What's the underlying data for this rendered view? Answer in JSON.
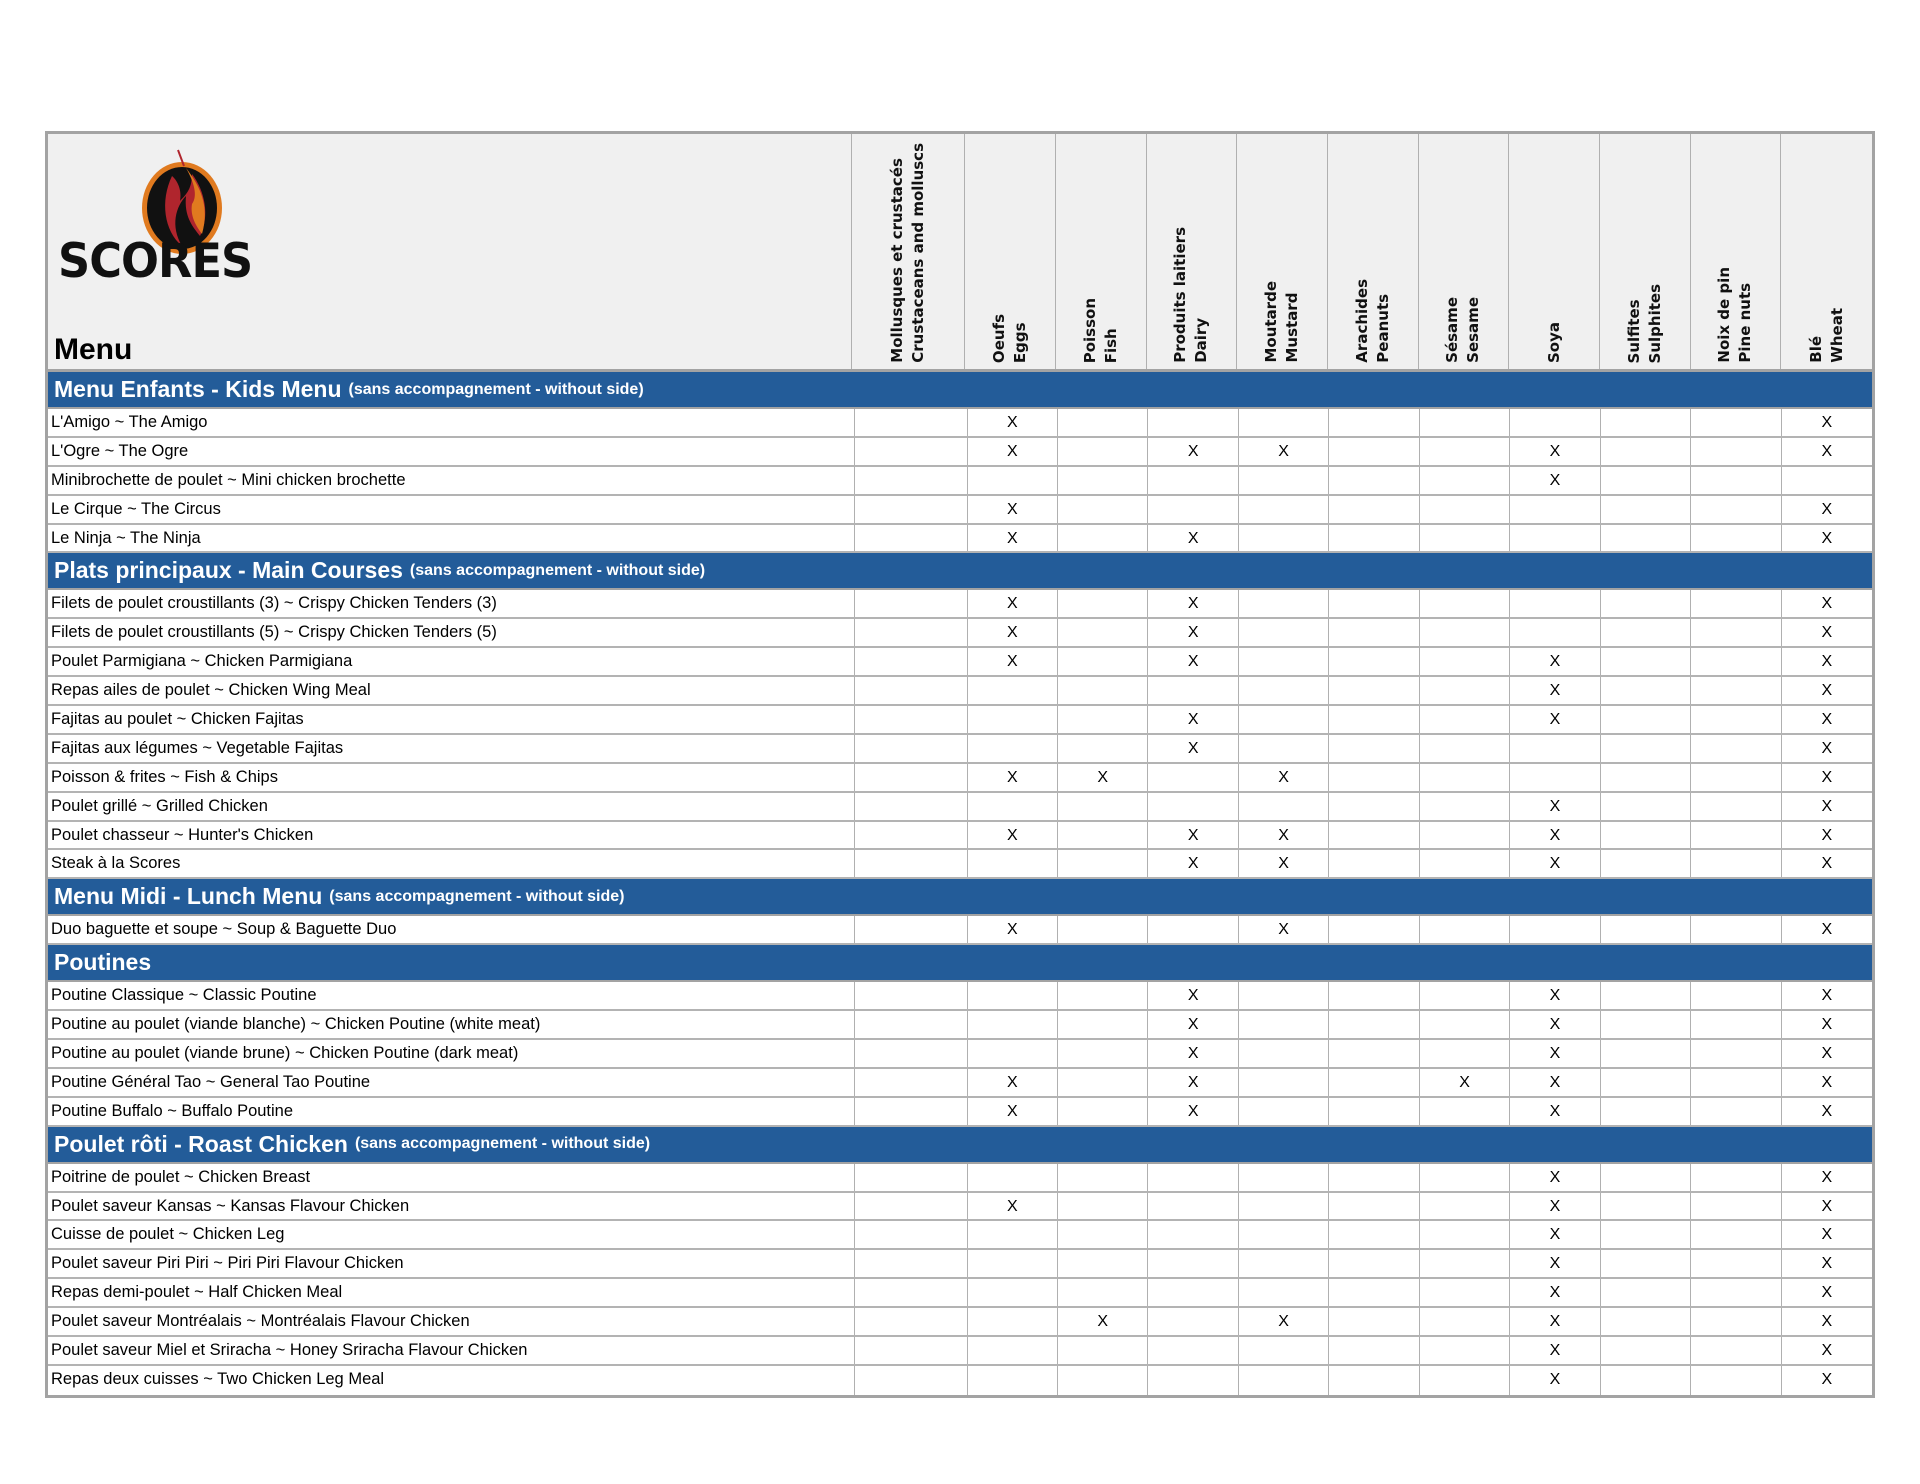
{
  "logo": {
    "text": "SCORES",
    "colors": {
      "orange": "#e07a1f",
      "red": "#b0252d",
      "black": "#111111"
    }
  },
  "header": {
    "title": "Menu"
  },
  "allergens": [
    {
      "fr": "Mollusques et crustacés",
      "en": "Crustaceans and molluscs"
    },
    {
      "fr": "Oeufs",
      "en": "Eggs"
    },
    {
      "fr": "Poisson",
      "en": "Fish"
    },
    {
      "fr": "Produits laitiers",
      "en": "Dairy"
    },
    {
      "fr": "Moutarde",
      "en": "Mustard"
    },
    {
      "fr": "Arachides",
      "en": "Peanuts"
    },
    {
      "fr": "Sésame",
      "en": "Sesame"
    },
    {
      "fr": "Soya",
      "en": ""
    },
    {
      "fr": "Sulfites",
      "en": "Sulphites"
    },
    {
      "fr": "Noix de pin",
      "en": "Pine nuts"
    },
    {
      "fr": "Blé",
      "en": "Wheat"
    }
  ],
  "colors": {
    "section_bg": "#235c99",
    "header_bg": "#f0f0f0"
  },
  "sections": [
    {
      "title": "Menu Enfants - Kids Menu",
      "note": "(sans accompagnement - without side)",
      "rows": [
        {
          "name": "L'Amigo ~ The Amigo",
          "cells": [
            "",
            "X",
            "",
            "",
            "",
            "",
            "",
            "",
            "",
            "",
            "X"
          ]
        },
        {
          "name": "L'Ogre ~ The Ogre",
          "cells": [
            "",
            "X",
            "",
            "X",
            "X",
            "",
            "",
            "X",
            "",
            "",
            "X"
          ]
        },
        {
          "name": "Minibrochette de poulet ~ Mini chicken brochette",
          "cells": [
            "",
            "",
            "",
            "",
            "",
            "",
            "",
            "X",
            "",
            "",
            ""
          ]
        },
        {
          "name": "Le Cirque ~ The Circus",
          "cells": [
            "",
            "X",
            "",
            "",
            "",
            "",
            "",
            "",
            "",
            "",
            "X"
          ]
        },
        {
          "name": "Le Ninja ~ The Ninja",
          "cells": [
            "",
            "X",
            "",
            "X",
            "",
            "",
            "",
            "",
            "",
            "",
            "X"
          ]
        }
      ]
    },
    {
      "title": "Plats principaux - Main Courses",
      "note": "(sans accompagnement - without side)",
      "rows": [
        {
          "name": "Filets de poulet croustillants (3) ~ Crispy Chicken Tenders (3)",
          "cells": [
            "",
            "X",
            "",
            "X",
            "",
            "",
            "",
            "",
            "",
            "",
            "X"
          ]
        },
        {
          "name": "Filets de poulet croustillants (5) ~ Crispy Chicken Tenders (5)",
          "cells": [
            "",
            "X",
            "",
            "X",
            "",
            "",
            "",
            "",
            "",
            "",
            "X"
          ]
        },
        {
          "name": "Poulet Parmigiana ~ Chicken Parmigiana",
          "cells": [
            "",
            "X",
            "",
            "X",
            "",
            "",
            "",
            "X",
            "",
            "",
            "X"
          ]
        },
        {
          "name": "Repas ailes de poulet ~ Chicken Wing Meal",
          "cells": [
            "",
            "",
            "",
            "",
            "",
            "",
            "",
            "X",
            "",
            "",
            "X"
          ]
        },
        {
          "name": "Fajitas au poulet ~ Chicken Fajitas",
          "cells": [
            "",
            "",
            "",
            "X",
            "",
            "",
            "",
            "X",
            "",
            "",
            "X"
          ]
        },
        {
          "name": "Fajitas aux légumes ~ Vegetable Fajitas",
          "cells": [
            "",
            "",
            "",
            "X",
            "",
            "",
            "",
            "",
            "",
            "",
            "X"
          ]
        },
        {
          "name": "Poisson & frites ~ Fish & Chips",
          "cells": [
            "",
            "X",
            "X",
            "",
            "X",
            "",
            "",
            "",
            "",
            "",
            "X"
          ]
        },
        {
          "name": "Poulet grillé ~ Grilled Chicken",
          "cells": [
            "",
            "",
            "",
            "",
            "",
            "",
            "",
            "X",
            "",
            "",
            "X"
          ]
        },
        {
          "name": "Poulet chasseur ~ Hunter's Chicken",
          "cells": [
            "",
            "X",
            "",
            "X",
            "X",
            "",
            "",
            "X",
            "",
            "",
            "X"
          ]
        },
        {
          "name": "Steak à la Scores",
          "cells": [
            "",
            "",
            "",
            "X",
            "X",
            "",
            "",
            "X",
            "",
            "",
            "X"
          ]
        }
      ]
    },
    {
      "title": "Menu Midi - Lunch Menu",
      "note": "(sans accompagnement - without side)",
      "rows": [
        {
          "name": "Duo baguette et soupe ~ Soup & Baguette Duo",
          "cells": [
            "",
            "X",
            "",
            "",
            "X",
            "",
            "",
            "",
            "",
            "",
            "X"
          ]
        }
      ]
    },
    {
      "title": "Poutines",
      "note": "",
      "rows": [
        {
          "name": "Poutine Classique ~ Classic Poutine",
          "cells": [
            "",
            "",
            "",
            "X",
            "",
            "",
            "",
            "X",
            "",
            "",
            "X"
          ]
        },
        {
          "name": "Poutine au poulet (viande blanche) ~ Chicken Poutine (white meat)",
          "cells": [
            "",
            "",
            "",
            "X",
            "",
            "",
            "",
            "X",
            "",
            "",
            "X"
          ]
        },
        {
          "name": "Poutine au poulet (viande brune) ~ Chicken Poutine (dark meat)",
          "cells": [
            "",
            "",
            "",
            "X",
            "",
            "",
            "",
            "X",
            "",
            "",
            "X"
          ]
        },
        {
          "name": "Poutine Général Tao ~ General Tao Poutine",
          "cells": [
            "",
            "X",
            "",
            "X",
            "",
            "",
            "X",
            "X",
            "",
            "",
            "X"
          ]
        },
        {
          "name": "Poutine Buffalo ~ Buffalo Poutine",
          "cells": [
            "",
            "X",
            "",
            "X",
            "",
            "",
            "",
            "X",
            "",
            "",
            "X"
          ]
        }
      ]
    },
    {
      "title": "Poulet rôti - Roast Chicken",
      "note": "(sans accompagnement - without side)",
      "rows": [
        {
          "name": "Poitrine de poulet ~ Chicken Breast",
          "cells": [
            "",
            "",
            "",
            "",
            "",
            "",
            "",
            "X",
            "",
            "",
            "X"
          ]
        },
        {
          "name": "Poulet saveur Kansas ~ Kansas Flavour Chicken",
          "cells": [
            "",
            "X",
            "",
            "",
            "",
            "",
            "",
            "X",
            "",
            "",
            "X"
          ]
        },
        {
          "name": "Cuisse de poulet ~ Chicken Leg",
          "cells": [
            "",
            "",
            "",
            "",
            "",
            "",
            "",
            "X",
            "",
            "",
            "X"
          ]
        },
        {
          "name": "Poulet saveur Piri Piri ~ Piri Piri Flavour Chicken",
          "cells": [
            "",
            "",
            "",
            "",
            "",
            "",
            "",
            "X",
            "",
            "",
            "X"
          ]
        },
        {
          "name": "Repas demi-poulet ~ Half Chicken Meal",
          "cells": [
            "",
            "",
            "",
            "",
            "",
            "",
            "",
            "X",
            "",
            "",
            "X"
          ]
        },
        {
          "name": "Poulet saveur Montréalais ~ Montréalais Flavour Chicken",
          "cells": [
            "",
            "",
            "X",
            "",
            "X",
            "",
            "",
            "X",
            "",
            "",
            "X"
          ]
        },
        {
          "name": "Poulet saveur Miel et Sriracha ~ Honey Sriracha Flavour Chicken",
          "cells": [
            "",
            "",
            "",
            "",
            "",
            "",
            "",
            "X",
            "",
            "",
            "X"
          ]
        },
        {
          "name": "Repas deux cuisses ~ Two Chicken Leg Meal",
          "cells": [
            "",
            "",
            "",
            "",
            "",
            "",
            "",
            "X",
            "",
            "",
            "X"
          ]
        }
      ]
    }
  ]
}
